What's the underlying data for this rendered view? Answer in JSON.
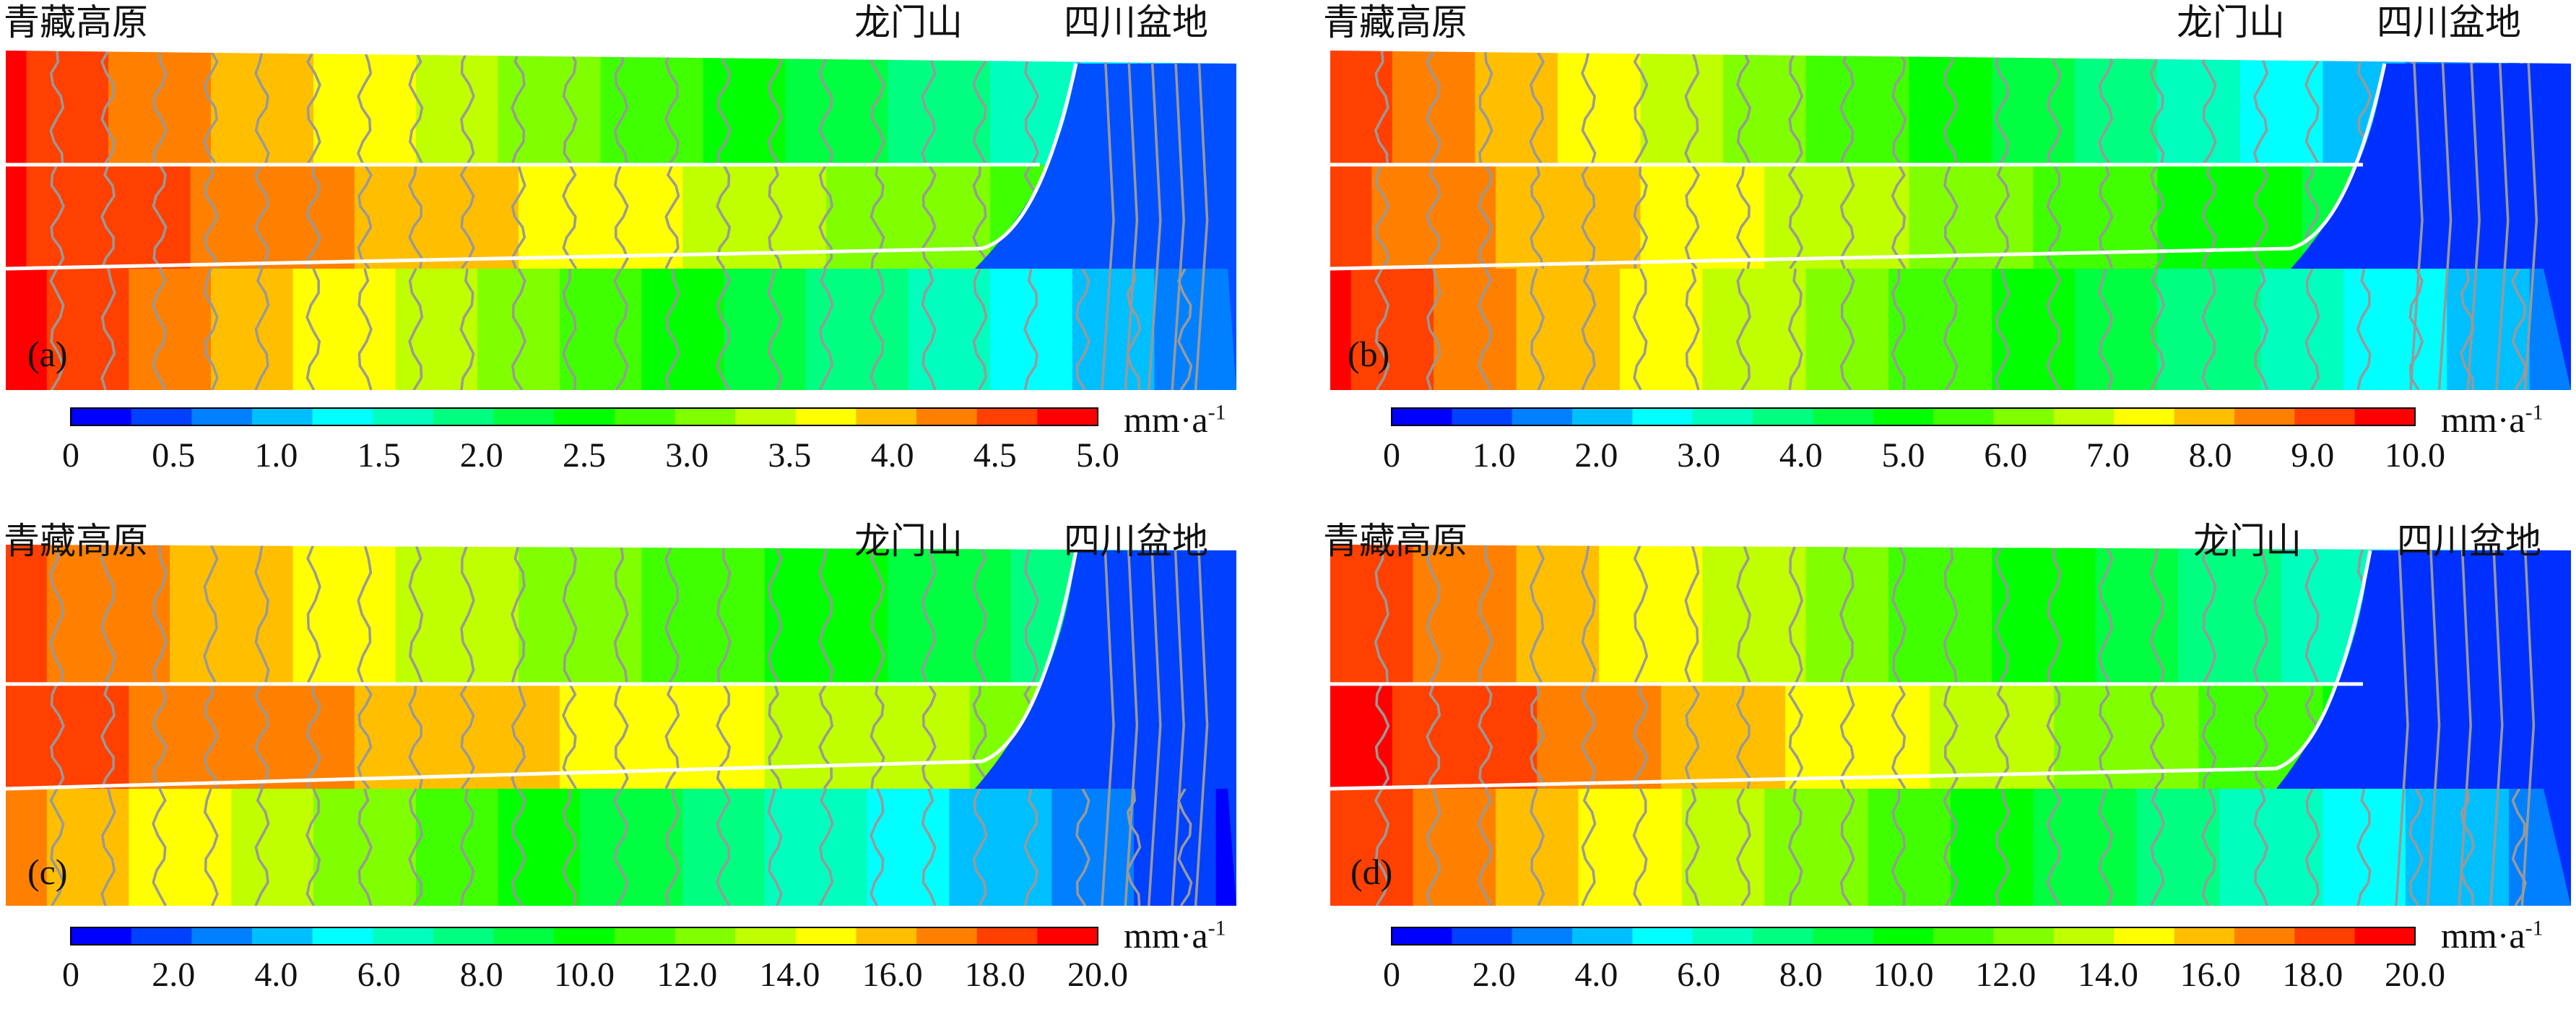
{
  "labels": {
    "plateau": "青藏高原",
    "mountain": "龙门山",
    "basin": "四川盆地",
    "unit_main": "mm·a",
    "unit_sup": "-1"
  },
  "palette": [
    "#0000ff",
    "#0040ff",
    "#0080ff",
    "#00bfff",
    "#00ffff",
    "#00ffbf",
    "#00ff80",
    "#00ff40",
    "#00ff00",
    "#40ff00",
    "#80ff00",
    "#bfff00",
    "#ffff00",
    "#ffbf00",
    "#ff8000",
    "#ff4000",
    "#ff0000"
  ],
  "contour_color": "#999999",
  "panels": [
    {
      "id": "a",
      "letter": "(a)",
      "ticks": [
        "0",
        "0.5",
        "1.0",
        "1.5",
        "2.0",
        "2.5",
        "3.0",
        "3.5",
        "4.0",
        "4.5",
        "5.0"
      ],
      "vmax": 5
    },
    {
      "id": "b",
      "letter": "(b)",
      "ticks": [
        "0",
        "1.0",
        "2.0",
        "3.0",
        "4.0",
        "5.0",
        "6.0",
        "7.0",
        "8.0",
        "9.0",
        "10.0"
      ],
      "vmax": 10
    },
    {
      "id": "c",
      "letter": "(c)",
      "ticks": [
        "0",
        "2.0",
        "4.0",
        "6.0",
        "8.0",
        "10.0",
        "12.0",
        "14.0",
        "16.0",
        "18.0",
        "20.0"
      ],
      "vmax": 20
    },
    {
      "id": "d",
      "letter": "(d)",
      "ticks": [
        "0",
        "2.0",
        "4.0",
        "6.0",
        "8.0",
        "10.0",
        "12.0",
        "14.0",
        "16.0",
        "18.0",
        "20.0"
      ],
      "vmax": 20
    }
  ]
}
